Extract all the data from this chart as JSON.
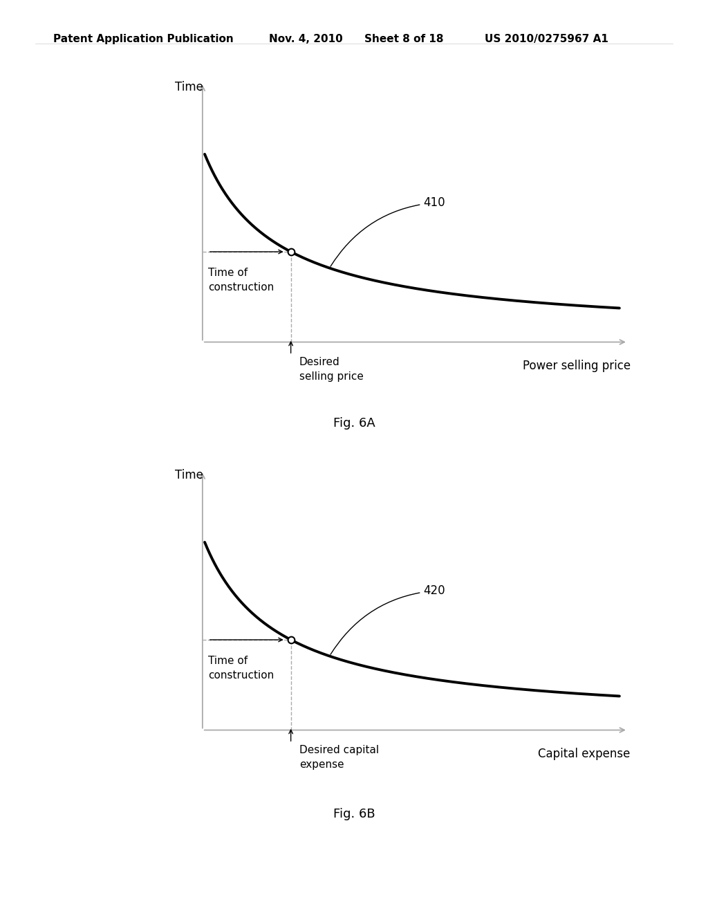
{
  "bg_color": "#ffffff",
  "header_text": "Patent Application Publication",
  "header_date": "Nov. 4, 2010",
  "header_sheet": "Sheet 8 of 18",
  "header_patent": "US 2010/0275967 A1",
  "fig6a": {
    "ylabel": "Time",
    "xlabel": "Power selling price",
    "curve_label": "410",
    "annotation_x": "Desired\nselling price",
    "annotation_y": "Time of\nconstruction",
    "fig_label": "Fig. 6A"
  },
  "fig6b": {
    "ylabel": "Time",
    "xlabel": "Capital expense",
    "curve_label": "420",
    "annotation_x": "Desired capital\nexpense",
    "annotation_y": "Time of\nconstruction",
    "fig_label": "Fig. 6B"
  },
  "axis_color": "#aaaaaa",
  "curve_color": "#000000",
  "dashed_color": "#aaaaaa",
  "arrow_color": "#000000",
  "header_fontsize": 11,
  "label_fontsize": 12,
  "annot_fontsize": 11,
  "fig_label_fontsize": 13
}
